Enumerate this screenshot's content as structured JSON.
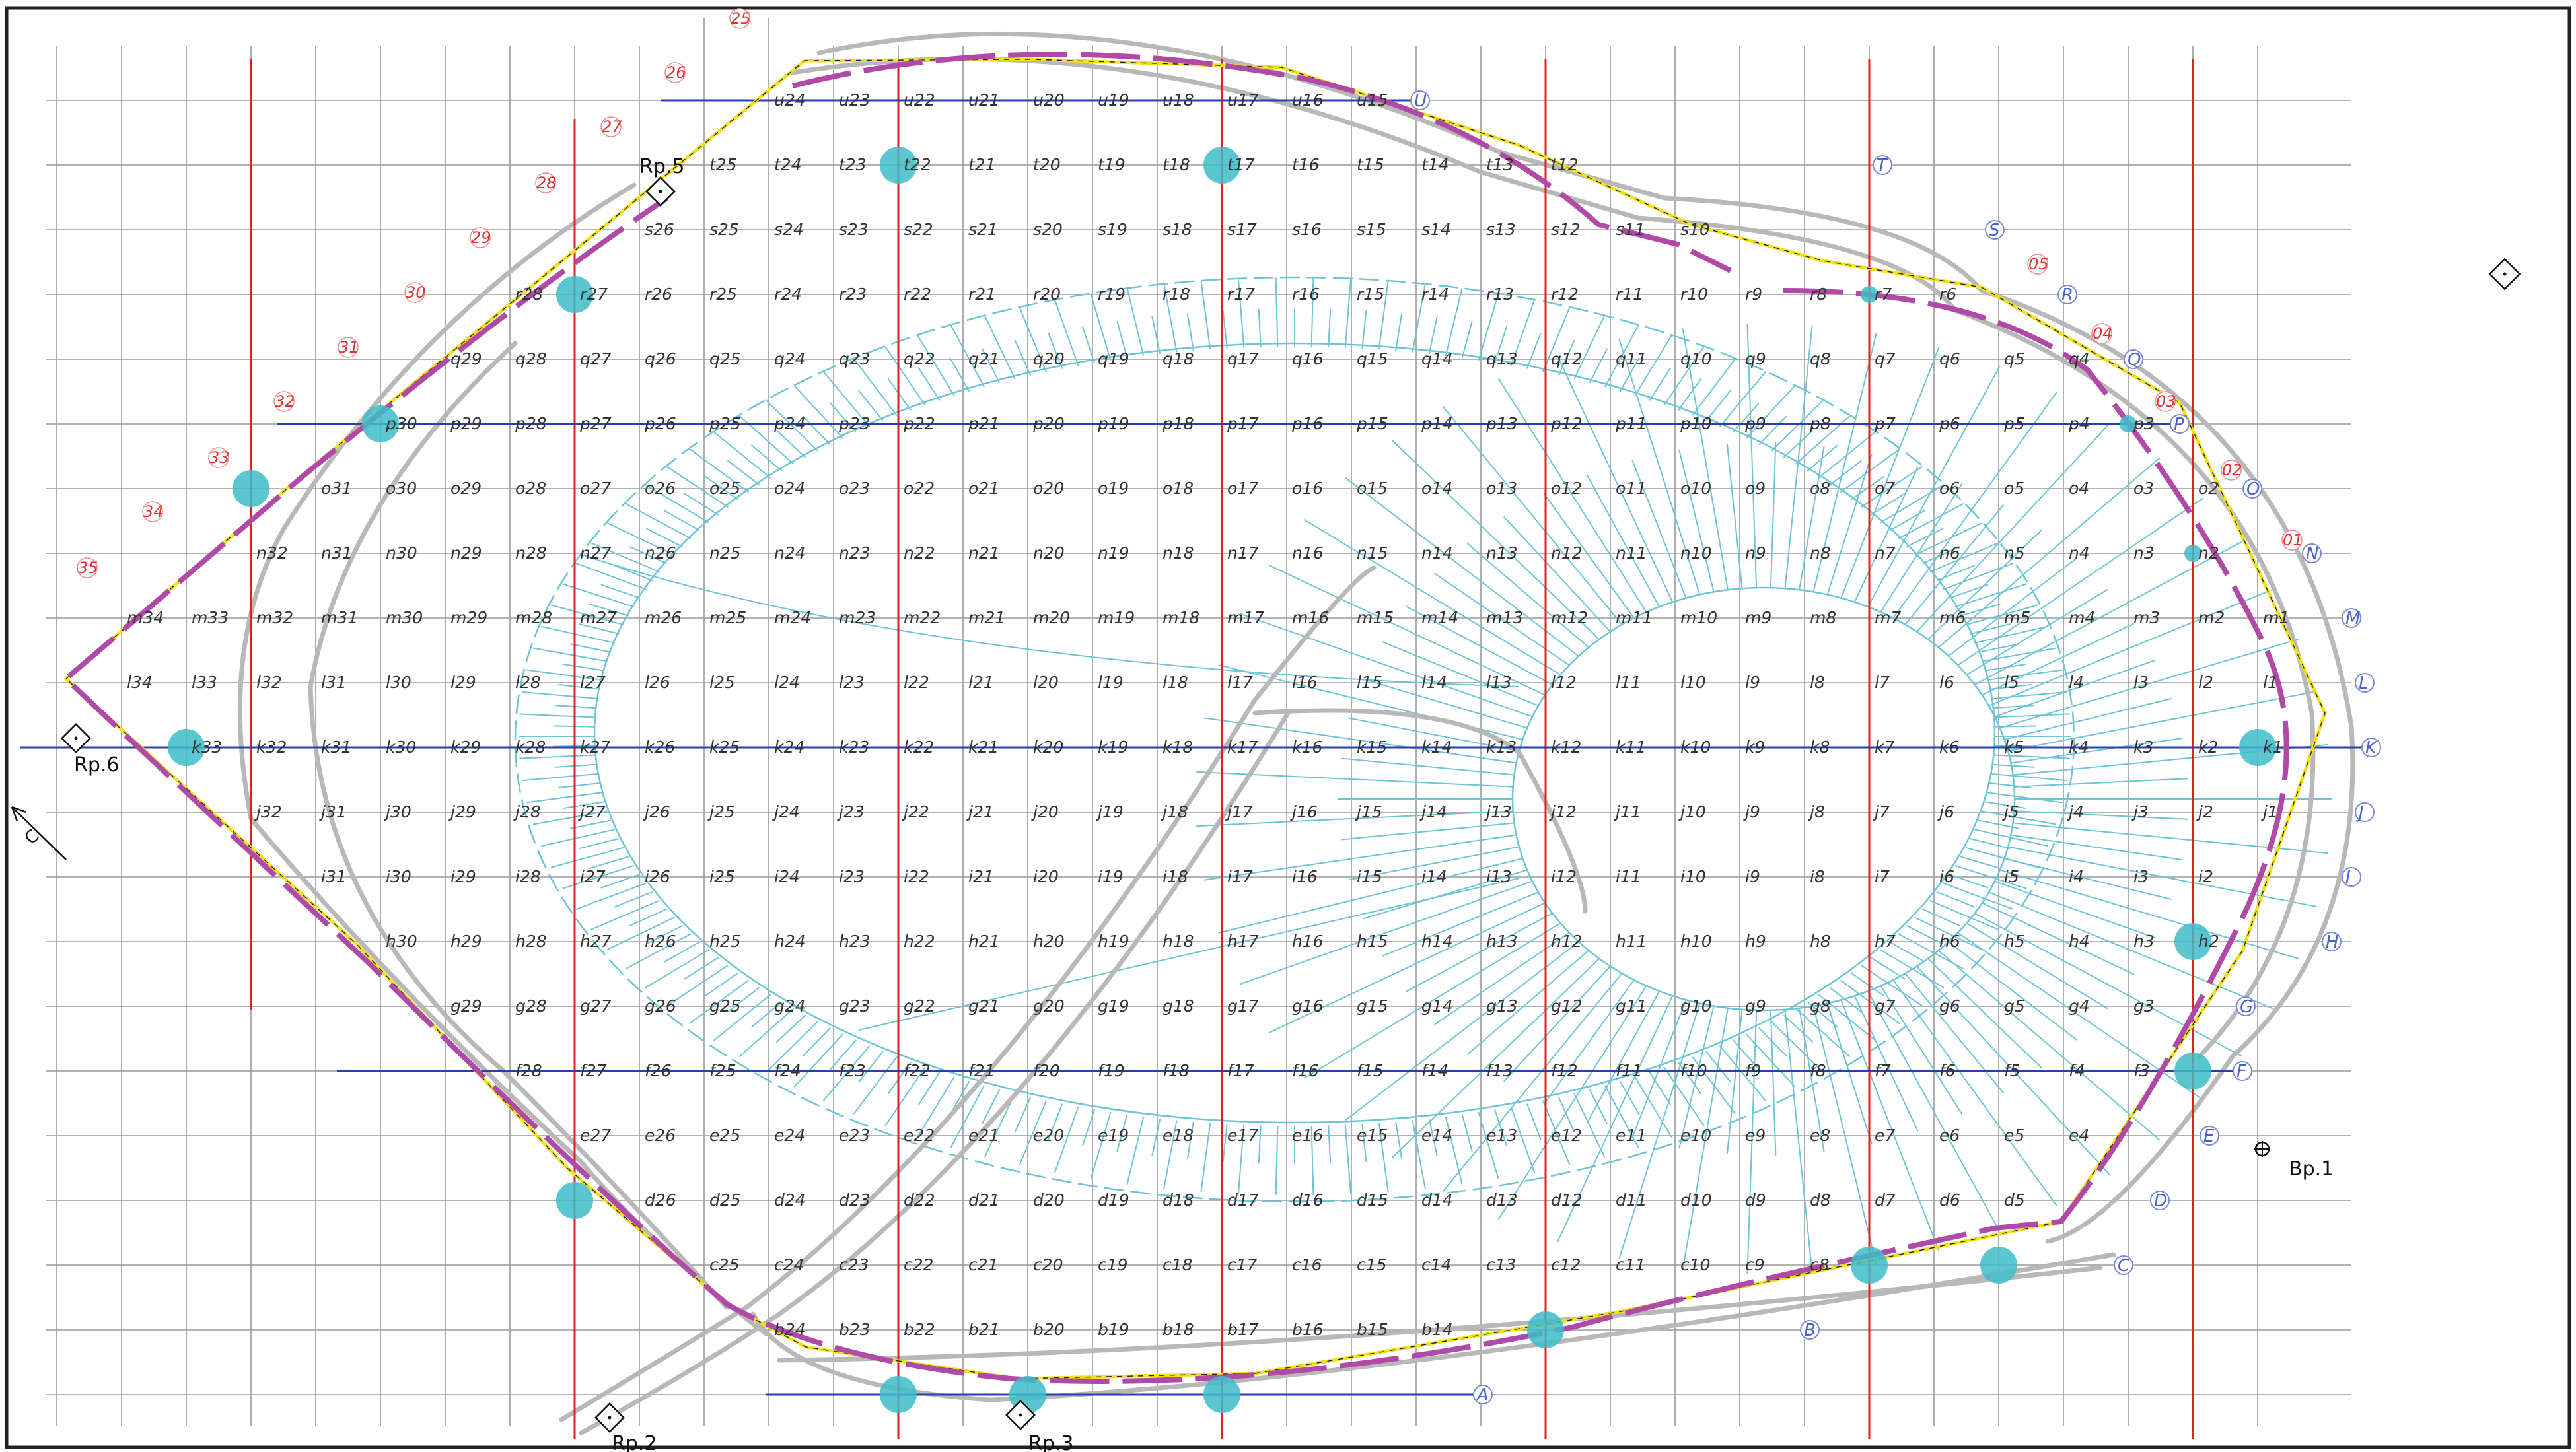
{
  "rows": [
    "A",
    "B",
    "C",
    "D",
    "E",
    "F",
    "G",
    "H",
    "I",
    "J",
    "K",
    "L",
    "M",
    "N",
    "O",
    "P",
    "Q",
    "R",
    "S",
    "T",
    "U"
  ],
  "columns": [
    "01",
    "02",
    "03",
    "04",
    "05",
    "26",
    "27",
    "28",
    "29",
    "30",
    "31",
    "32",
    "33",
    "34",
    "35",
    "25"
  ],
  "markers": {
    "bp1": "Bp.1",
    "rp2": "Rp.2",
    "rp3": "Rp.3",
    "rp5": "Rp.5",
    "rp6": "Rp.6",
    "c_marker": "C"
  },
  "colors": {
    "border": "#222222",
    "grid": "#9a9a9a",
    "cyan": "#6cc4d6",
    "magenta": "#b04aa6",
    "yellow": "#f1e11c",
    "red": "#e02020",
    "blue": "#2a3fae",
    "road": "#b8b8b8",
    "circle": "#3dbcc8"
  }
}
